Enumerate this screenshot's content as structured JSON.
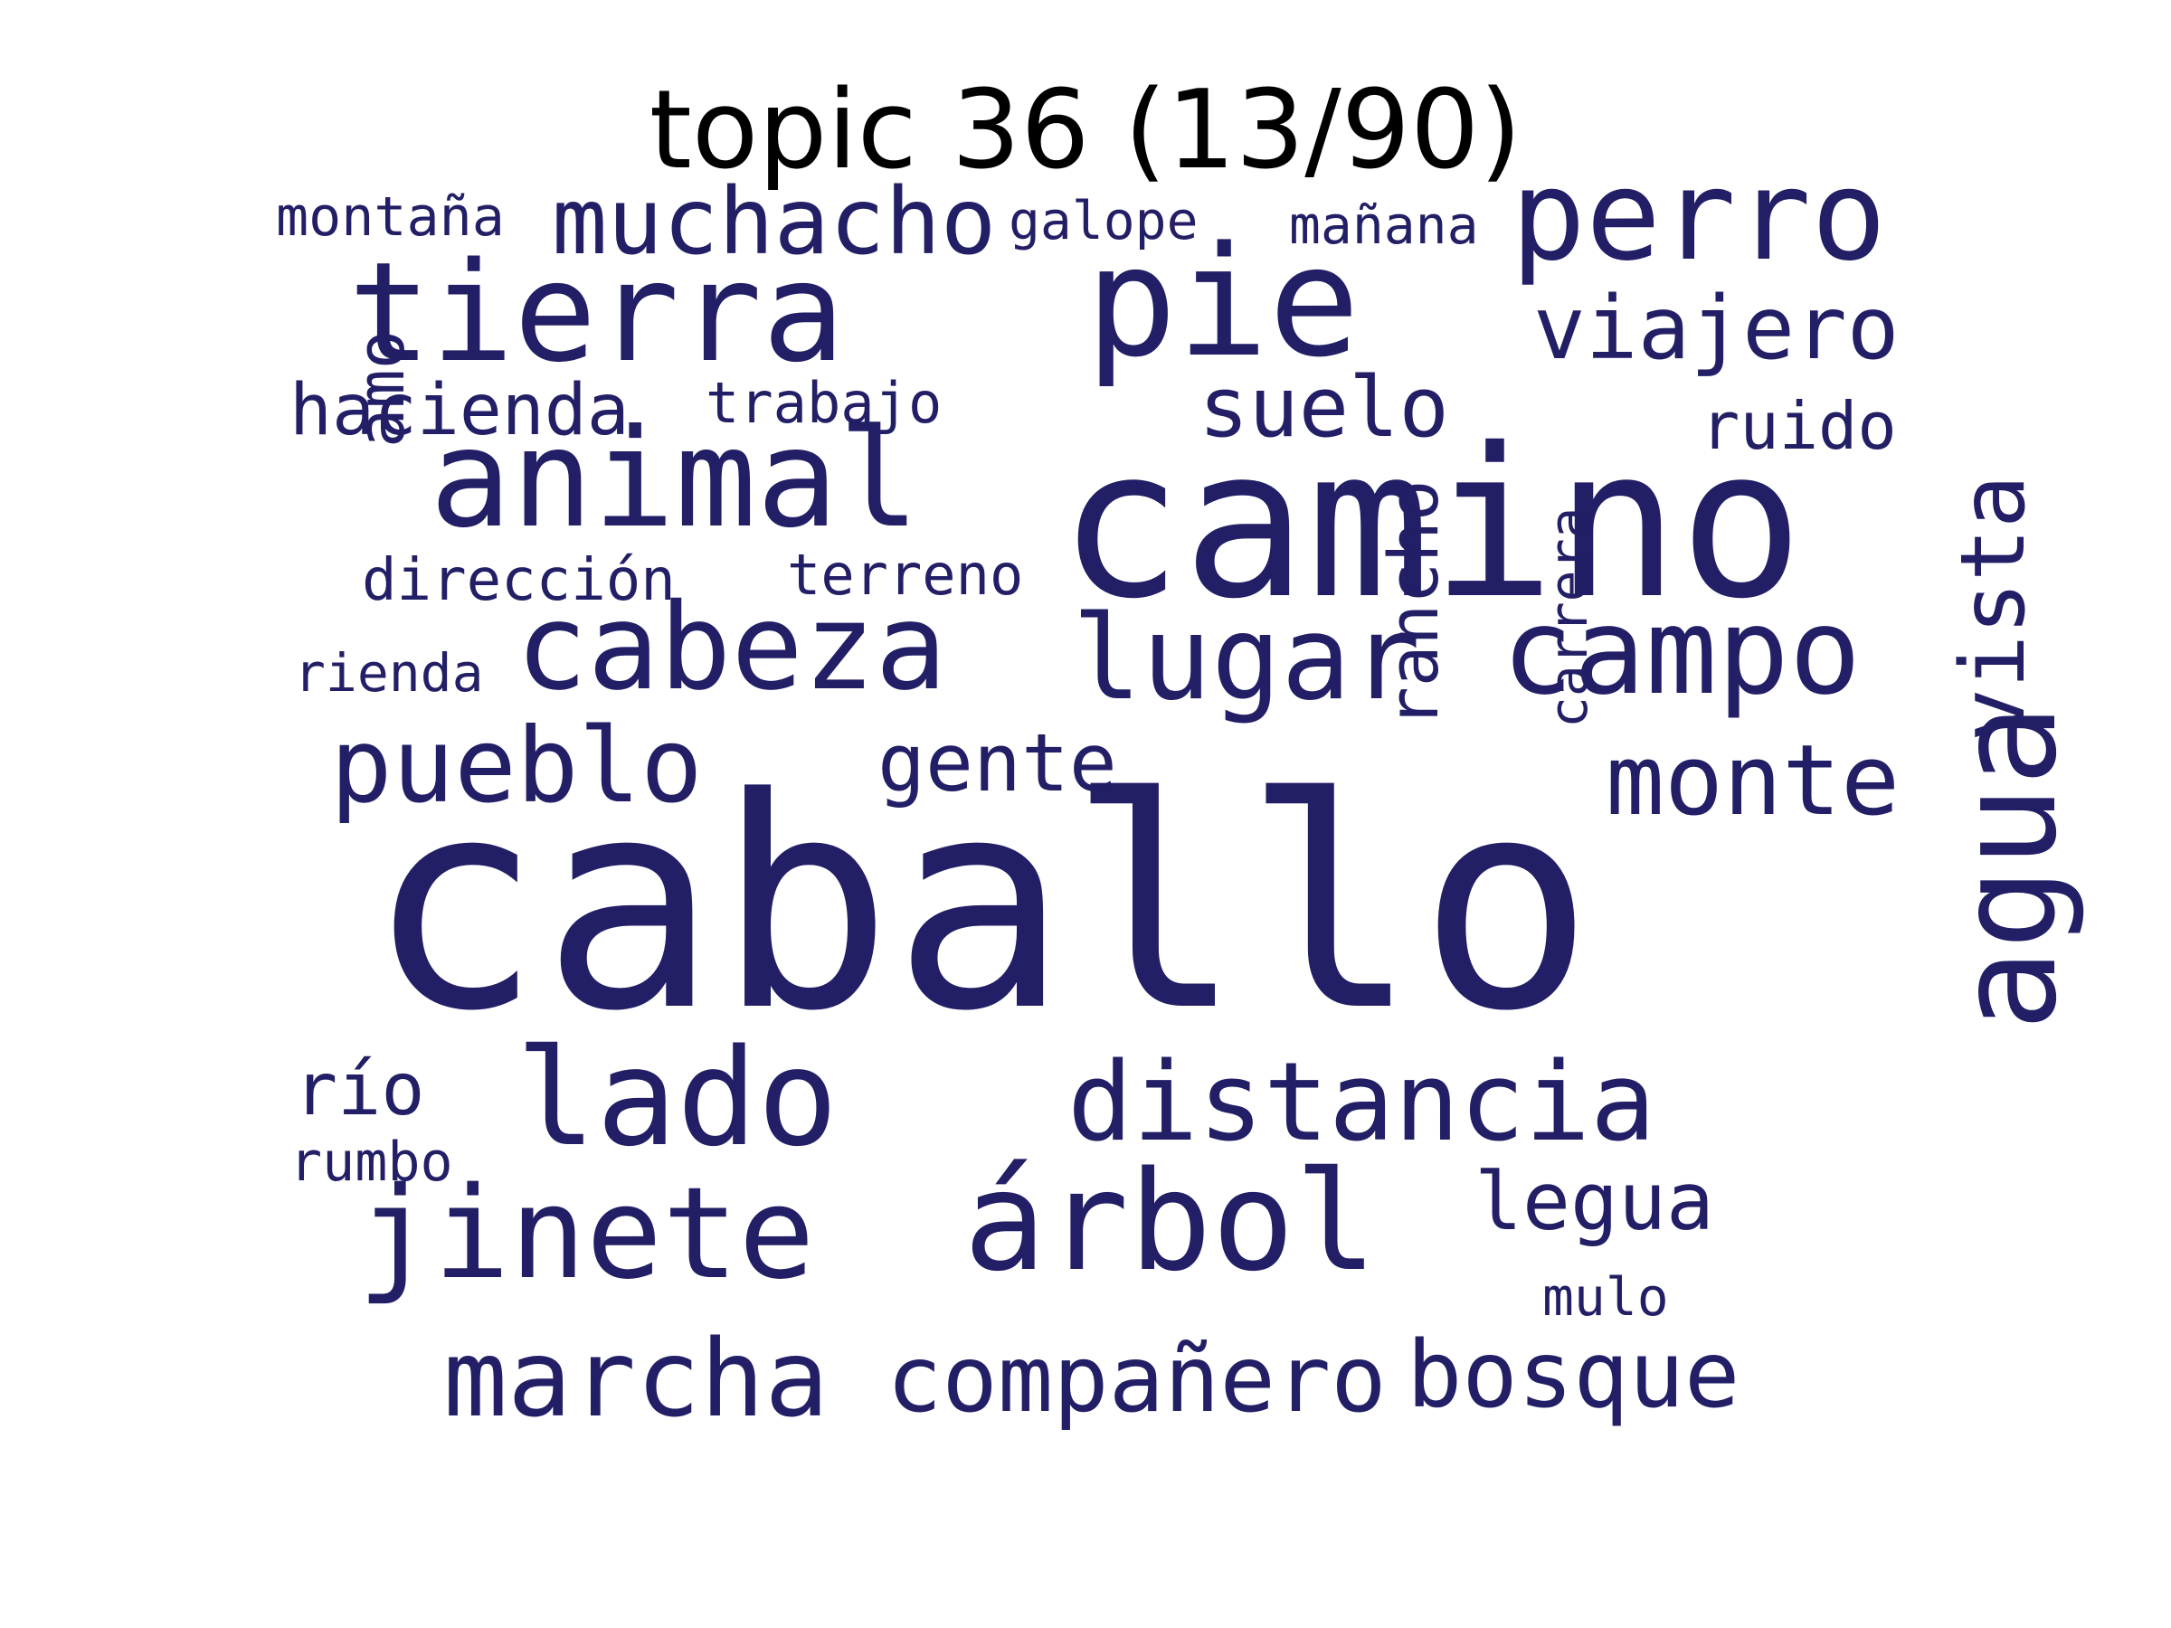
{
  "title": "topic 36 (13/90)",
  "word_color": "#221f66",
  "words": [
    {
      "text": "caballo"
    },
    {
      "text": "camino"
    },
    {
      "text": "pie"
    },
    {
      "text": "tierra"
    },
    {
      "text": "animal"
    },
    {
      "text": "perro"
    },
    {
      "text": "campo"
    },
    {
      "text": "cabeza"
    },
    {
      "text": "lugar"
    },
    {
      "text": "árbol"
    },
    {
      "text": "jinete"
    },
    {
      "text": "lado"
    },
    {
      "text": "agua"
    },
    {
      "text": "distancia"
    },
    {
      "text": "pueblo"
    },
    {
      "text": "marcha"
    },
    {
      "text": "compañero"
    },
    {
      "text": "bosque"
    },
    {
      "text": "monte"
    },
    {
      "text": "muchacho"
    },
    {
      "text": "viajero"
    },
    {
      "text": "suelo"
    },
    {
      "text": "vista"
    },
    {
      "text": "gente"
    },
    {
      "text": "legua"
    },
    {
      "text": "hacienda"
    },
    {
      "text": "rancho"
    },
    {
      "text": "amo"
    },
    {
      "text": "río"
    },
    {
      "text": "ruido"
    },
    {
      "text": "carrera"
    },
    {
      "text": "trabajo"
    },
    {
      "text": "dirección"
    },
    {
      "text": "terreno"
    },
    {
      "text": "montaña"
    },
    {
      "text": "galope"
    },
    {
      "text": "mañana"
    },
    {
      "text": "rienda"
    },
    {
      "text": "rumbo"
    },
    {
      "text": "mulo"
    }
  ]
}
